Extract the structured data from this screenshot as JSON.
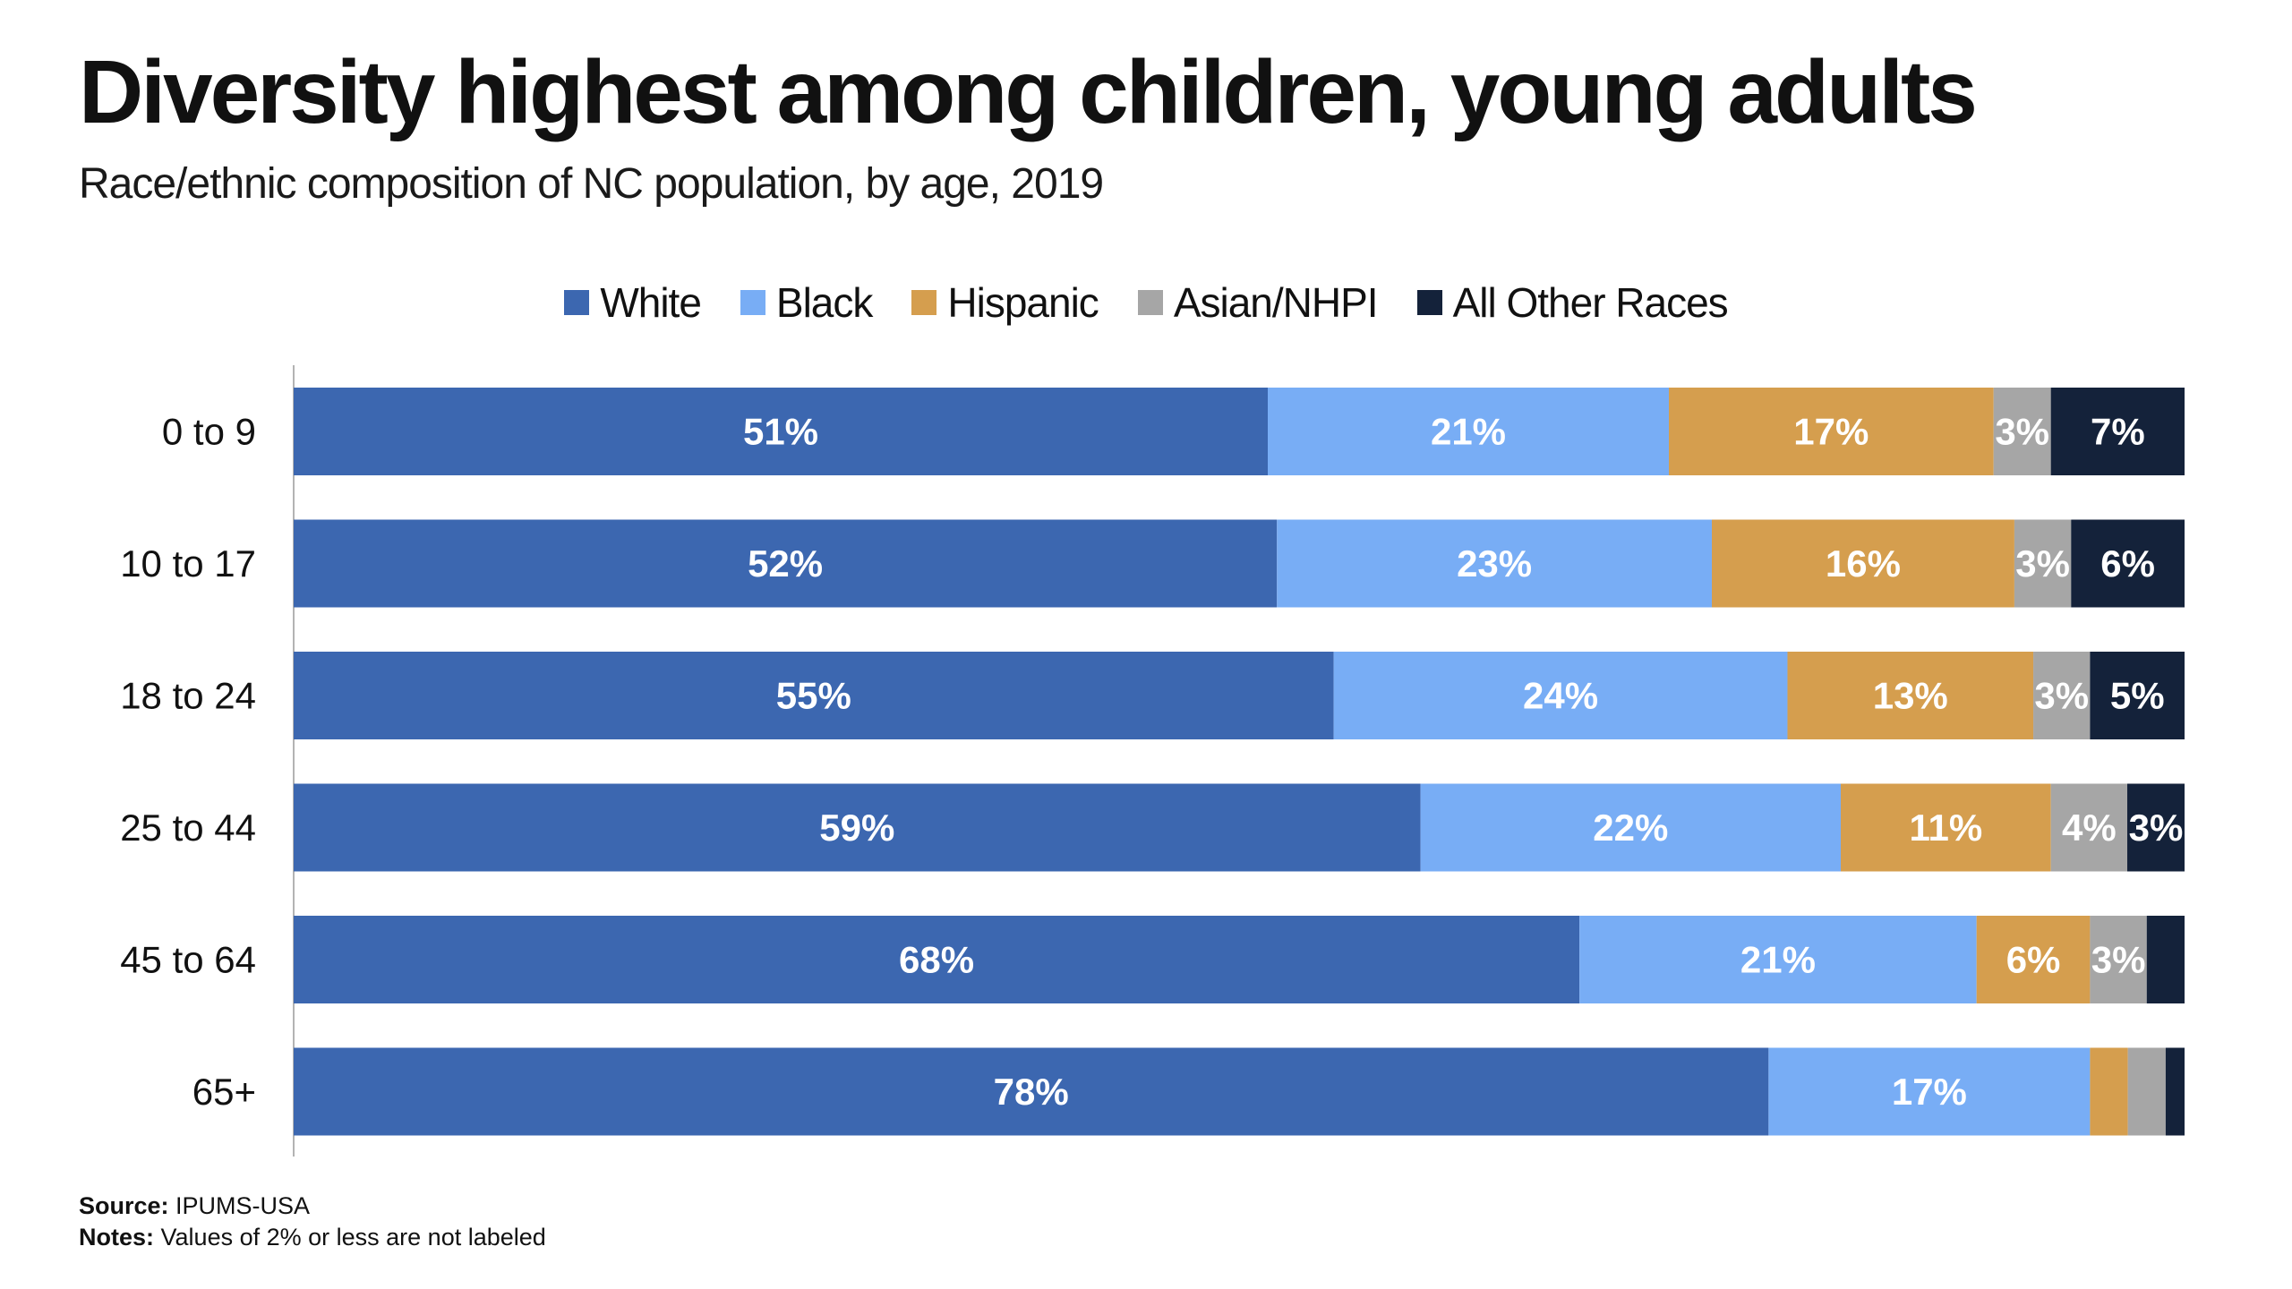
{
  "title": "Diversity highest among children, young adults",
  "subtitle": "Race/ethnic composition of NC population, by age, 2019",
  "footer": {
    "source_label": "Source:",
    "source_text": "IPUMS-USA",
    "notes_label": "Notes:",
    "notes_text": "Values of 2% or less are not labeled"
  },
  "chart_data": {
    "type": "bar",
    "orientation": "horizontal",
    "stacked": true,
    "title": "Diversity highest among children, young adults",
    "subtitle": "Race/ethnic composition of NC population, by age, 2019",
    "xlabel": "",
    "ylabel": "",
    "xlim": [
      0,
      100
    ],
    "unit": "%",
    "grid": false,
    "legend_position": "top-center",
    "categories": [
      "0 to 9",
      "10 to 17",
      "18 to 24",
      "25 to 44",
      "45 to 64",
      "65+"
    ],
    "series": [
      {
        "name": "White",
        "color": "#3c67b0",
        "values": [
          51,
          52,
          55,
          59,
          68,
          78
        ],
        "labels": [
          "51%",
          "52%",
          "55%",
          "59%",
          "68%",
          "78%"
        ]
      },
      {
        "name": "Black",
        "color": "#78adf5",
        "values": [
          21,
          23,
          24,
          22,
          21,
          17
        ],
        "labels": [
          "21%",
          "23%",
          "24%",
          "22%",
          "21%",
          "17%"
        ]
      },
      {
        "name": "Hispanic",
        "color": "#d59e4e",
        "values": [
          17,
          16,
          13,
          11,
          6,
          2
        ],
        "labels": [
          "17%",
          "16%",
          "13%",
          "11%",
          "6%",
          ""
        ]
      },
      {
        "name": "Asian/NHPI",
        "color": "#a6a6a6",
        "values": [
          3,
          3,
          3,
          4,
          3,
          2
        ],
        "labels": [
          "3%",
          "3%",
          "3%",
          "4%",
          "3%",
          ""
        ]
      },
      {
        "name": "All Other Races",
        "color": "#14223a",
        "values": [
          7,
          6,
          5,
          3,
          2,
          1
        ],
        "labels": [
          "7%",
          "6%",
          "5%",
          "3%",
          "",
          ""
        ]
      }
    ]
  }
}
